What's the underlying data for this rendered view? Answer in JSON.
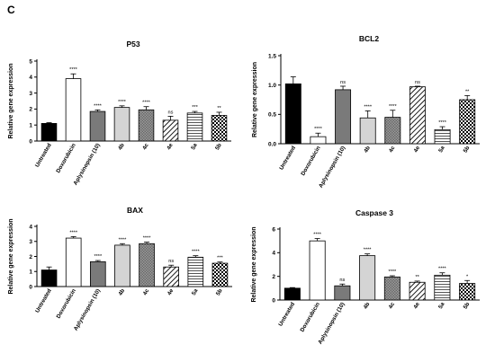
{
  "figure": {
    "panel_label": "C"
  },
  "colors": {
    "black": "#000000",
    "white": "#ffffff",
    "dark_gray": "#7a7a7a",
    "light_gray": "#d4d4d4"
  },
  "chart_data": [
    {
      "type": "bar",
      "title": "P53",
      "ylabel": "Relative gene expression",
      "ylim": [
        0,
        5
      ],
      "yticks": [
        "0",
        "1",
        "2",
        "3",
        "4",
        "5"
      ],
      "categories": [
        "Untreated",
        "Doxorubicin",
        "Aplysinopsin (10)",
        "4b",
        "4c",
        "4e",
        "5a",
        "5b"
      ],
      "values": [
        1.1,
        3.9,
        1.85,
        2.1,
        1.95,
        1.3,
        1.75,
        1.6
      ],
      "errors": [
        0.05,
        0.3,
        0.1,
        0.1,
        0.2,
        0.25,
        0.1,
        0.2
      ],
      "significance": [
        "",
        "****",
        "****",
        "****",
        "****",
        "ns",
        "***",
        "**"
      ],
      "fills": [
        "black",
        "white",
        "dark-gray",
        "light-gray",
        "gray-check",
        "diagonal",
        "horizontal",
        "checker"
      ]
    },
    {
      "type": "bar",
      "title": "BCL2",
      "ylabel": "Relative gene expression",
      "ylim": [
        0,
        1.5
      ],
      "yticks": [
        "0.0",
        "0.5",
        "1.0",
        "1.5"
      ],
      "categories": [
        "Untreated",
        "Doxorubicin",
        "Aplysinopsin (10)",
        "4b",
        "4c",
        "4e",
        "5a",
        "5b"
      ],
      "values": [
        1.02,
        0.12,
        0.92,
        0.44,
        0.45,
        0.97,
        0.24,
        0.75
      ],
      "errors": [
        0.12,
        0.06,
        0.06,
        0.12,
        0.12,
        0.01,
        0.05,
        0.07
      ],
      "significance": [
        "",
        "****",
        "ns",
        "****",
        "****",
        "ns",
        "****",
        "**"
      ],
      "fills": [
        "black",
        "white",
        "dark-gray",
        "light-gray",
        "gray-check",
        "diagonal",
        "horizontal",
        "checker"
      ]
    },
    {
      "type": "bar",
      "title": "BAX",
      "ylabel": "Relative gene expression",
      "ylim": [
        0,
        4
      ],
      "yticks": [
        "0",
        "1",
        "2",
        "3",
        "4"
      ],
      "categories": [
        "Untreated",
        "Doxorubicin",
        "Aplysinopsin (10)",
        "4b",
        "4c",
        "4e",
        "5a",
        "5b"
      ],
      "values": [
        1.1,
        3.22,
        1.65,
        2.75,
        2.85,
        1.3,
        1.95,
        1.55
      ],
      "errors": [
        0.2,
        0.1,
        0.08,
        0.1,
        0.1,
        0.12,
        0.1,
        0.08
      ],
      "significance": [
        "",
        "****",
        "****",
        "****",
        "****",
        "ns",
        "****",
        "***"
      ],
      "fills": [
        "black",
        "white",
        "dark-gray",
        "light-gray",
        "gray-check",
        "diagonal",
        "horizontal",
        "checker"
      ]
    },
    {
      "type": "bar",
      "title": "Caspase 3",
      "ylabel": "Relative gene expression",
      "ylim": [
        0,
        6
      ],
      "yticks": [
        "0",
        "2",
        "4",
        "6"
      ],
      "categories": [
        "Untreated",
        "Doxorubicin",
        "Aplysinopsin (10)",
        "4b",
        "4c",
        "4e",
        "5a",
        "5b"
      ],
      "values": [
        1.0,
        5.0,
        1.2,
        3.75,
        1.95,
        1.5,
        2.1,
        1.4
      ],
      "errors": [
        0.05,
        0.2,
        0.15,
        0.15,
        0.1,
        0.1,
        0.2,
        0.25
      ],
      "significance": [
        "",
        "****",
        "ns",
        "****",
        "****",
        "**",
        "****",
        "*"
      ],
      "fills": [
        "black",
        "white",
        "dark-gray",
        "light-gray",
        "gray-check",
        "diagonal",
        "horizontal",
        "checker"
      ]
    }
  ]
}
